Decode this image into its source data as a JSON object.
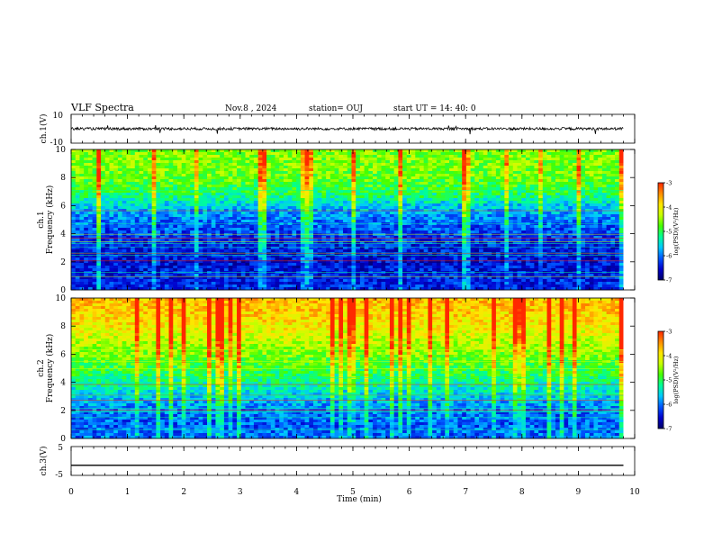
{
  "header": {
    "title": "VLF Spectra",
    "date": "Nov.8  , 2024",
    "station": "station= OUJ",
    "start": "start  UT  =   14: 40: 0"
  },
  "colors": {
    "colormap": [
      "#000066",
      "#0000cc",
      "#0055ff",
      "#00c8ff",
      "#00ff96",
      "#46ff00",
      "#c8ff00",
      "#ffe600",
      "#ff8c00",
      "#ff2800",
      "#ffffff"
    ]
  },
  "chart_data": [
    {
      "type": "line",
      "name": "channel-1-waveform-panel",
      "ylabel": "ch.1(V)",
      "ylim": [
        -10,
        10
      ],
      "y_tick_labels": [
        "10",
        "-10"
      ],
      "xlim": [
        0,
        10
      ],
      "baseline": 0,
      "line_color": "#000000"
    },
    {
      "type": "heatmap",
      "name": "channel-1-spectrogram",
      "ylabel": [
        "ch.1",
        "Frequency (kHz)"
      ],
      "ylim": [
        0,
        10
      ],
      "y_tick_labels": [
        "0",
        "2",
        "4",
        "6",
        "8",
        "10"
      ],
      "xlim": [
        0,
        10
      ],
      "data_end_min": 9.8,
      "colorbar": {
        "label": "log(PSD)(V²/Hz)",
        "range": [
          -7,
          -3
        ],
        "tick_labels": [
          "-3",
          "-4",
          "-5",
          "-6",
          "-7"
        ]
      },
      "level_profile": [
        {
          "f": 0,
          "v": -6.3
        },
        {
          "f": 1,
          "v": -6.4
        },
        {
          "f": 2,
          "v": -6.5
        },
        {
          "f": 3,
          "v": -6.4
        },
        {
          "f": 4,
          "v": -6.2
        },
        {
          "f": 5,
          "v": -6.0
        },
        {
          "f": 6,
          "v": -5.6
        },
        {
          "f": 7,
          "v": -5.0
        },
        {
          "f": 8,
          "v": -4.7
        },
        {
          "f": 9,
          "v": -4.6
        },
        {
          "f": 10,
          "v": -4.6
        }
      ]
    },
    {
      "type": "heatmap",
      "name": "channel-2-spectrogram",
      "ylabel": [
        "ch.2",
        "Frequency (kHz)"
      ],
      "ylim": [
        0,
        10
      ],
      "y_tick_labels": [
        "0",
        "2",
        "4",
        "6",
        "8",
        "10"
      ],
      "xlim": [
        0,
        10
      ],
      "data_end_min": 9.8,
      "colorbar": {
        "label": "log(PSD)(V²/Hz)",
        "range": [
          -7,
          -3
        ],
        "tick_labels": [
          "-3",
          "-4",
          "-5",
          "-6",
          "-7"
        ]
      },
      "level_profile": [
        {
          "f": 0,
          "v": -6.0
        },
        {
          "f": 1,
          "v": -6.1
        },
        {
          "f": 2,
          "v": -6.0
        },
        {
          "f": 3,
          "v": -5.6
        },
        {
          "f": 4,
          "v": -5.2
        },
        {
          "f": 5,
          "v": -4.9
        },
        {
          "f": 6,
          "v": -4.6
        },
        {
          "f": 7,
          "v": -4.3
        },
        {
          "f": 8,
          "v": -4.0
        },
        {
          "f": 9,
          "v": -3.8
        },
        {
          "f": 10,
          "v": -3.7
        }
      ]
    },
    {
      "type": "line",
      "name": "channel-3-waveform-panel",
      "ylabel": "ch.3(V)",
      "ylim": [
        -5,
        5
      ],
      "y_tick_labels": [
        "5",
        "-5"
      ],
      "xlim": [
        0,
        10
      ],
      "baseline": -1.5,
      "line_color": "#000000"
    }
  ],
  "x_axis": {
    "label": "Time  (min)",
    "range": [
      0,
      10
    ],
    "tick_labels": [
      "0",
      "1",
      "2",
      "3",
      "4",
      "5",
      "6",
      "7",
      "8",
      "9",
      "10"
    ]
  }
}
